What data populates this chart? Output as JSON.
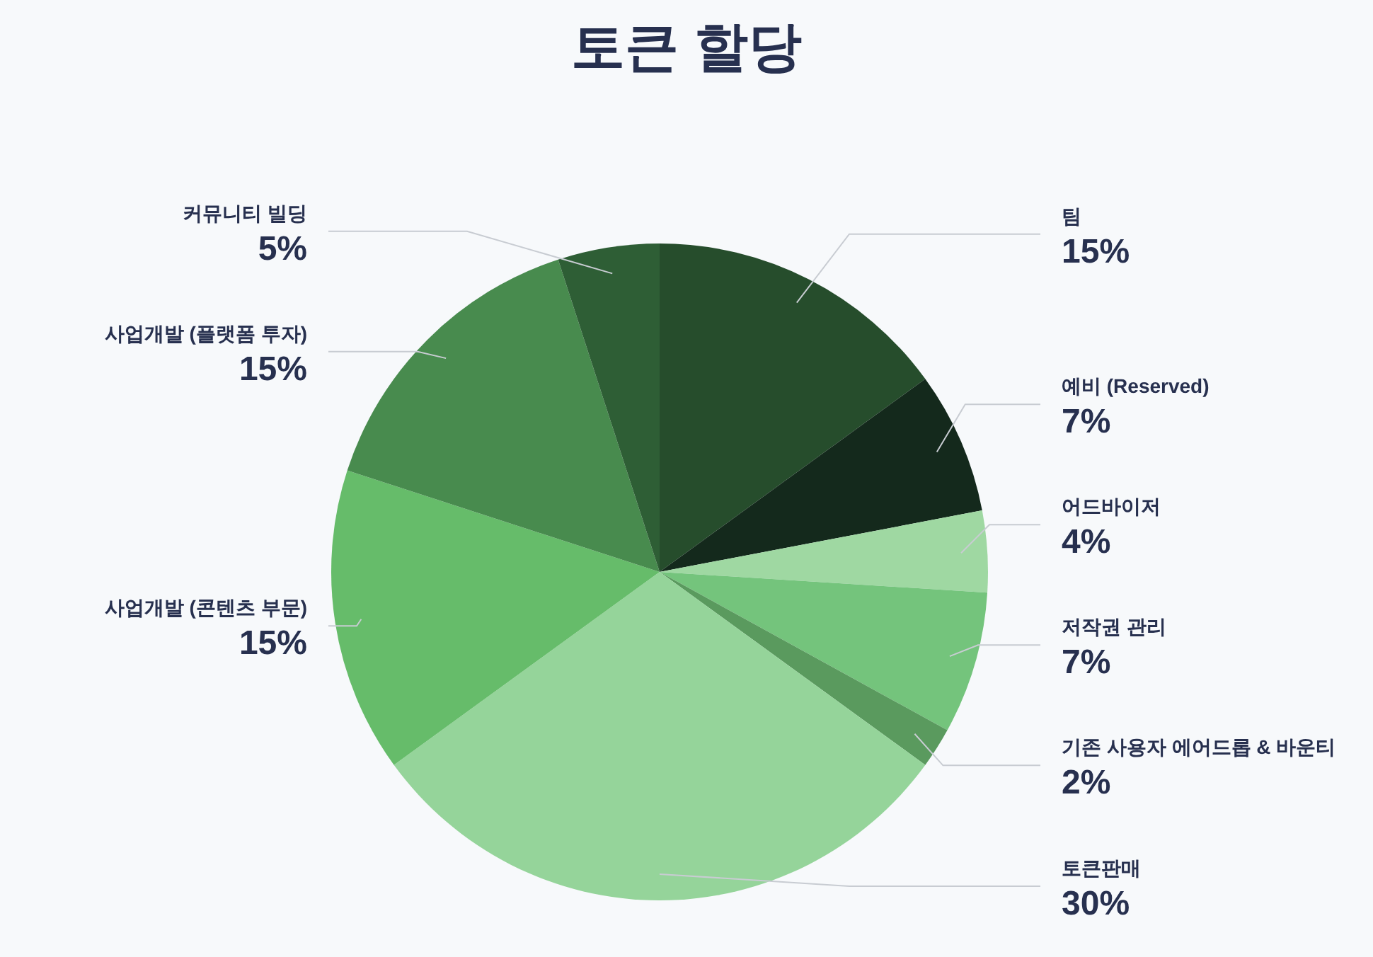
{
  "chart_data": {
    "type": "pie",
    "title": "토큰 할당",
    "categories": [
      "팀",
      "예비 (Reserved)",
      "어드바이저",
      "저작권 관리",
      "기존 사용자 에어드롭 & 바운티",
      "토큰판매",
      "사업개발 (콘텐츠 부문)",
      "사업개발 (플랫폼 투자)",
      "커뮤니티 빌딩"
    ],
    "values": [
      15,
      7,
      4,
      7,
      2,
      30,
      15,
      15,
      5
    ],
    "colors": [
      "#264d2c",
      "#14291c",
      "#9fd8a2",
      "#74c47c",
      "#5a9a5e",
      "#95d49a",
      "#66bc6a",
      "#488b4e",
      "#2e5e35"
    ],
    "value_labels": [
      "15%",
      "7%",
      "4%",
      "7%",
      "2%",
      "30%",
      "15%",
      "15%",
      "5%"
    ]
  }
}
